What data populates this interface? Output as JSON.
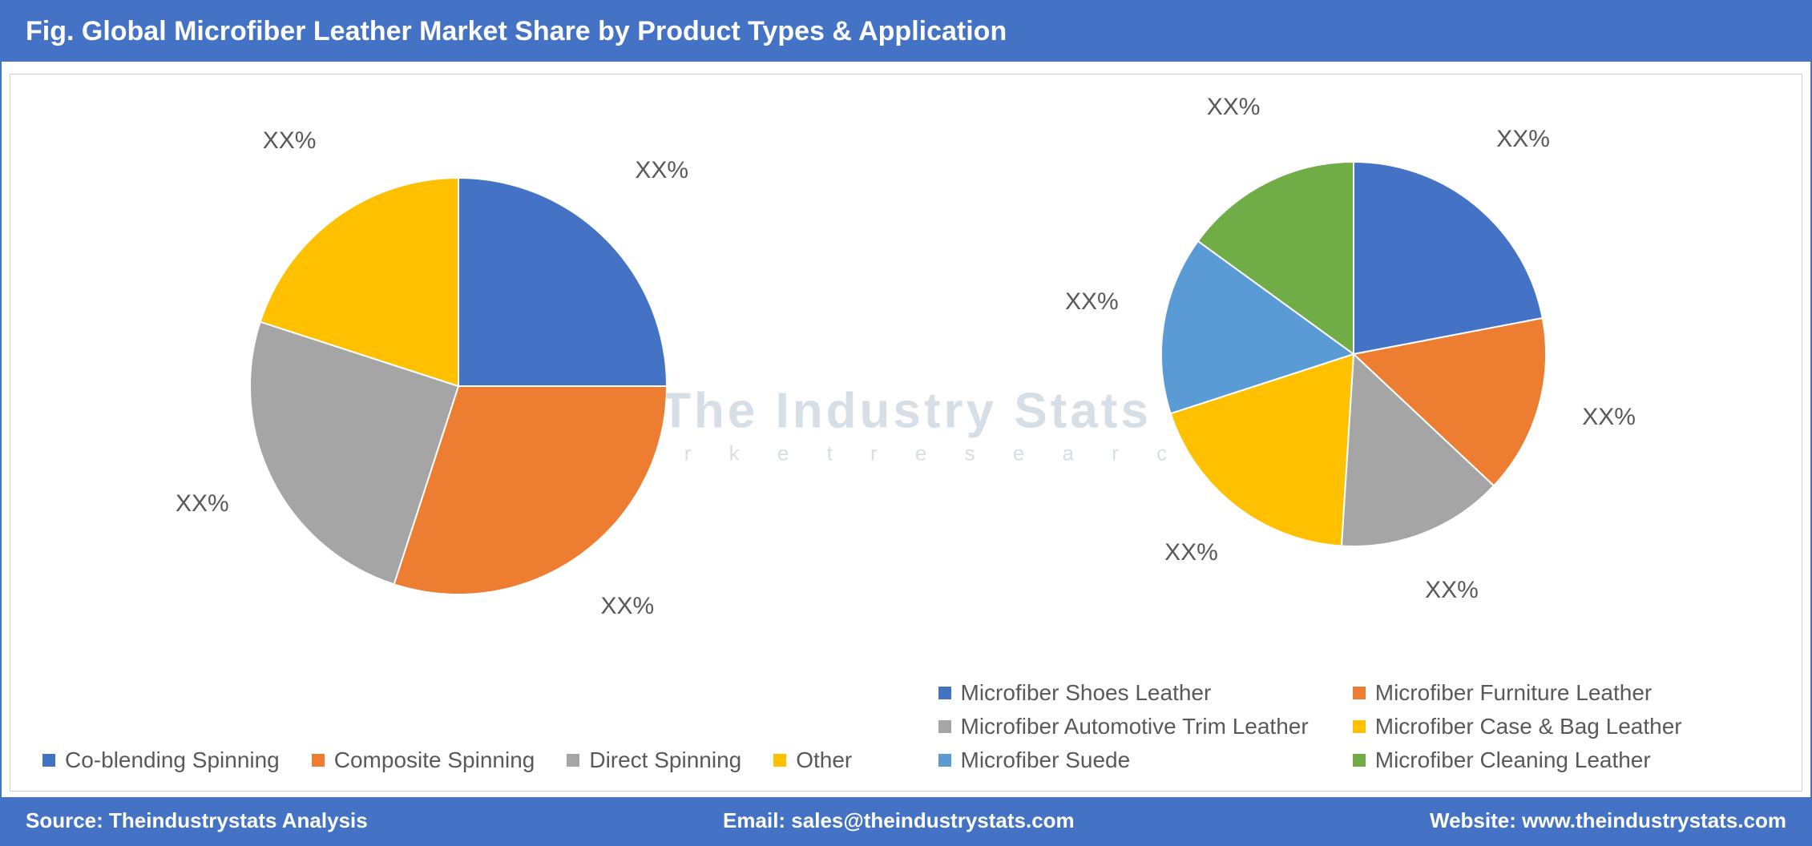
{
  "header": {
    "title": "Fig. Global Microfiber Leather Market Share by Product Types & Application"
  },
  "footer": {
    "source": "Source: Theindustrystats Analysis",
    "email": "Email: sales@theindustrystats.com",
    "website": "Website: www.theindustrystats.com"
  },
  "watermark": {
    "main": "The Industry Stats",
    "sub": "m a r k e t   r e s e a r c h"
  },
  "colors": {
    "brand_blue": "#4472c4",
    "text_gray": "#595959",
    "panel_border": "#d0d0d0",
    "white": "#ffffff"
  },
  "chart_left": {
    "type": "pie",
    "radius": 260,
    "label_outer_offset": 1.38,
    "label_fontsize": 30,
    "legend_fontsize": 28,
    "slices": [
      {
        "label": "Co-blending Spinning",
        "value": 25,
        "display": "XX%",
        "color": "#4472c4"
      },
      {
        "label": "Composite Spinning",
        "value": 30,
        "display": "XX%",
        "color": "#ed7d31"
      },
      {
        "label": "Direct Spinning",
        "value": 25,
        "display": "XX%",
        "color": "#a5a5a5"
      },
      {
        "label": "Other",
        "value": 20,
        "display": "XX%",
        "color": "#ffc000"
      }
    ]
  },
  "chart_right": {
    "type": "pie",
    "radius": 240,
    "label_outer_offset": 1.38,
    "label_fontsize": 30,
    "legend_fontsize": 28,
    "slices": [
      {
        "label": "Microfiber Shoes Leather",
        "value": 22,
        "display": "XX%",
        "color": "#4472c4"
      },
      {
        "label": "Microfiber Furniture Leather",
        "value": 15,
        "display": "XX%",
        "color": "#ed7d31"
      },
      {
        "label": "Microfiber Automotive Trim Leather",
        "value": 14,
        "display": "XX%",
        "color": "#a5a5a5"
      },
      {
        "label": "Microfiber Case & Bag Leather",
        "value": 19,
        "display": "XX%",
        "color": "#ffc000"
      },
      {
        "label": "Microfiber Suede",
        "value": 15,
        "display": "XX%",
        "color": "#5b9bd5"
      },
      {
        "label": "Microfiber Cleaning Leather",
        "value": 15,
        "display": "XX%",
        "color": "#70ad47"
      }
    ]
  }
}
